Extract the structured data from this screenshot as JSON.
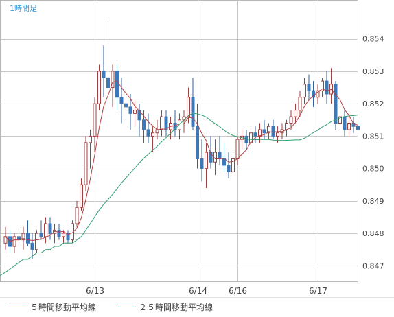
{
  "chart_data": {
    "type": "candlestick",
    "title": "1時間足",
    "x_ticks": [
      "6/13",
      "6/14",
      "6/16",
      "6/17"
    ],
    "y_ticks": [
      0.847,
      0.848,
      0.849,
      0.85,
      0.851,
      0.852,
      0.853,
      0.854
    ],
    "ylim": [
      0.8465,
      0.8552
    ],
    "grid": true,
    "legend": [
      {
        "name": "５時間移動平均線",
        "color": "#b24040"
      },
      {
        "name": "２５時間移動平均線",
        "color": "#2e9e6e"
      }
    ],
    "colors": {
      "up": "#ffffff",
      "down": "#3d78b8",
      "candle_border": "#a04040",
      "grid": "#c8c8c8"
    },
    "candles": [
      [
        0.8477,
        0.8482,
        0.8475,
        0.8479
      ],
      [
        0.8479,
        0.8481,
        0.8474,
        0.8476
      ],
      [
        0.8476,
        0.848,
        0.8474,
        0.8479
      ],
      [
        0.8479,
        0.8482,
        0.8477,
        0.8478
      ],
      [
        0.8478,
        0.8482,
        0.8475,
        0.848
      ],
      [
        0.848,
        0.8484,
        0.8476,
        0.8477
      ],
      [
        0.8477,
        0.848,
        0.8472,
        0.8475
      ],
      [
        0.8475,
        0.8481,
        0.8474,
        0.848
      ],
      [
        0.848,
        0.8484,
        0.8478,
        0.8479
      ],
      [
        0.8479,
        0.8485,
        0.8477,
        0.8483
      ],
      [
        0.8483,
        0.8485,
        0.8478,
        0.848
      ],
      [
        0.848,
        0.8483,
        0.8477,
        0.8481
      ],
      [
        0.8481,
        0.8483,
        0.8478,
        0.8479
      ],
      [
        0.8479,
        0.8481,
        0.8477,
        0.848
      ],
      [
        0.848,
        0.8481,
        0.8477,
        0.8478
      ],
      [
        0.8478,
        0.8484,
        0.8477,
        0.8483
      ],
      [
        0.8483,
        0.849,
        0.8482,
        0.8488
      ],
      [
        0.8488,
        0.8497,
        0.8487,
        0.8495
      ],
      [
        0.8495,
        0.851,
        0.8493,
        0.8508
      ],
      [
        0.8508,
        0.8512,
        0.85,
        0.851
      ],
      [
        0.851,
        0.8522,
        0.8505,
        0.852
      ],
      [
        0.852,
        0.8532,
        0.8518,
        0.853
      ],
      [
        0.853,
        0.8538,
        0.8522,
        0.8528
      ],
      [
        0.8528,
        0.8546,
        0.8522,
        0.8525
      ],
      [
        0.8525,
        0.8532,
        0.8519,
        0.853
      ],
      [
        0.853,
        0.8532,
        0.8518,
        0.8522
      ],
      [
        0.8522,
        0.8528,
        0.8514,
        0.852
      ],
      [
        0.852,
        0.8525,
        0.8515,
        0.8519
      ],
      [
        0.8519,
        0.8523,
        0.8512,
        0.8517
      ],
      [
        0.8517,
        0.8521,
        0.8513,
        0.8518
      ],
      [
        0.8518,
        0.852,
        0.851,
        0.8515
      ],
      [
        0.8515,
        0.8518,
        0.8508,
        0.8512
      ],
      [
        0.8512,
        0.8517,
        0.8508,
        0.851
      ],
      [
        0.851,
        0.8513,
        0.8505,
        0.8511
      ],
      [
        0.8511,
        0.8515,
        0.8509,
        0.8512
      ],
      [
        0.8512,
        0.8518,
        0.851,
        0.8516
      ],
      [
        0.8516,
        0.8518,
        0.851,
        0.8512
      ],
      [
        0.8512,
        0.8516,
        0.8509,
        0.8514
      ],
      [
        0.8514,
        0.8518,
        0.851,
        0.8512
      ],
      [
        0.8512,
        0.8517,
        0.8509,
        0.8515
      ],
      [
        0.8515,
        0.8518,
        0.8511,
        0.8516
      ],
      [
        0.8516,
        0.8525,
        0.8514,
        0.8522
      ],
      [
        0.8522,
        0.8528,
        0.8512,
        0.8513
      ],
      [
        0.8513,
        0.852,
        0.85,
        0.8503
      ],
      [
        0.8503,
        0.8509,
        0.8496,
        0.85
      ],
      [
        0.85,
        0.8508,
        0.8494,
        0.8505
      ],
      [
        0.8505,
        0.851,
        0.85,
        0.8502
      ],
      [
        0.8502,
        0.8509,
        0.8498,
        0.8505
      ],
      [
        0.8505,
        0.851,
        0.8501,
        0.8503
      ],
      [
        0.8503,
        0.8508,
        0.8499,
        0.8501
      ],
      [
        0.8501,
        0.8505,
        0.8497,
        0.8499
      ],
      [
        0.8499,
        0.8505,
        0.8498,
        0.8503
      ],
      [
        0.8503,
        0.851,
        0.8501,
        0.8509
      ],
      [
        0.8509,
        0.8512,
        0.8506,
        0.851
      ],
      [
        0.851,
        0.8512,
        0.8506,
        0.8508
      ],
      [
        0.8508,
        0.8512,
        0.8506,
        0.8511
      ],
      [
        0.8511,
        0.8513,
        0.8508,
        0.851
      ],
      [
        0.851,
        0.8514,
        0.8508,
        0.8512
      ],
      [
        0.8512,
        0.8515,
        0.8509,
        0.8511
      ],
      [
        0.8511,
        0.8514,
        0.8509,
        0.8513
      ],
      [
        0.8513,
        0.8515,
        0.8509,
        0.851
      ],
      [
        0.851,
        0.8513,
        0.8508,
        0.8511
      ],
      [
        0.8511,
        0.8514,
        0.8509,
        0.8512
      ],
      [
        0.8512,
        0.8515,
        0.851,
        0.8514
      ],
      [
        0.8514,
        0.8518,
        0.8512,
        0.8516
      ],
      [
        0.8516,
        0.852,
        0.8514,
        0.8518
      ],
      [
        0.8518,
        0.8524,
        0.8516,
        0.8522
      ],
      [
        0.8522,
        0.8528,
        0.852,
        0.8526
      ],
      [
        0.8526,
        0.8529,
        0.8521,
        0.8524
      ],
      [
        0.8524,
        0.8527,
        0.8519,
        0.8522
      ],
      [
        0.8522,
        0.8526,
        0.852,
        0.8524
      ],
      [
        0.8524,
        0.8528,
        0.8522,
        0.8527
      ],
      [
        0.8527,
        0.853,
        0.852,
        0.8523
      ],
      [
        0.8523,
        0.8531,
        0.852,
        0.8526
      ],
      [
        0.8526,
        0.8527,
        0.8512,
        0.8514
      ],
      [
        0.8514,
        0.8519,
        0.8512,
        0.8516
      ],
      [
        0.8516,
        0.8518,
        0.851,
        0.8512
      ],
      [
        0.8512,
        0.8517,
        0.851,
        0.8514
      ],
      [
        0.8514,
        0.8516,
        0.8511,
        0.8513
      ],
      [
        0.8513,
        0.8516,
        0.8509,
        0.8512
      ]
    ]
  }
}
